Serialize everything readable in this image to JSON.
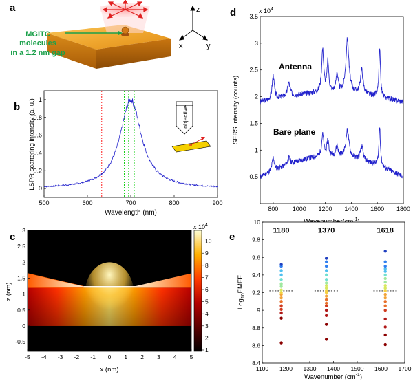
{
  "panel_labels": {
    "a": "a",
    "b": "b",
    "c": "c",
    "d": "d",
    "e": "e"
  },
  "panel_a": {
    "annotation_lines": [
      "MGITC",
      "molecules",
      "in a 1.2 nm gap"
    ],
    "axes": {
      "z": "z",
      "x": "x",
      "y": "y"
    },
    "colors": {
      "annotation": "#1aa04a",
      "gold_top": "#f1b23a",
      "gold_side": "#c8780e"
    }
  },
  "chart_data": [
    {
      "id": "b",
      "type": "line",
      "title": "",
      "xlabel": "Wavelength (nm)",
      "ylabel": "LSPR scattering intensity (a. u.)",
      "xlim": [
        500,
        900
      ],
      "ylim": [
        -0.1,
        1.1
      ],
      "xticks": [
        "500",
        "600",
        "700",
        "800",
        "900"
      ],
      "yticks": [
        "0",
        "0.2",
        "0.4",
        "0.6",
        "0.8",
        "1"
      ],
      "peak_nm": 700,
      "fwhm_nm": 60,
      "vlines": [
        {
          "x": 633,
          "color": "#ff0000"
        },
        {
          "x": 685,
          "color": "#00cc00"
        },
        {
          "x": 695,
          "color": "#00cc00"
        },
        {
          "x": 708,
          "color": "#00cc00"
        }
      ],
      "inset_label": "objective"
    },
    {
      "id": "c",
      "type": "heatmap",
      "xlabel": "x (nm)",
      "ylabel": "z (nm)",
      "xlim": [
        -5,
        5
      ],
      "ylim": [
        -0.8,
        3
      ],
      "xticks": [
        "-5",
        "-4",
        "-3",
        "-2",
        "-1",
        "0",
        "1",
        "2",
        "3",
        "4",
        "5"
      ],
      "yticks": [
        "-0.5",
        "0",
        "0.5",
        "1",
        "1.5",
        "2",
        "2.5",
        "3"
      ],
      "colorbar": {
        "min": 1,
        "max": 11,
        "ticks": [
          "1",
          "2",
          "3",
          "4",
          "5",
          "6",
          "7",
          "8",
          "9",
          "10"
        ],
        "scale_label": "x 10",
        "scale_exp": "4"
      }
    },
    {
      "id": "d",
      "type": "line",
      "xlabel": "Wavenumber(cm",
      "xlabel_sup": "-1",
      "xlabel_end": ")",
      "ylabel": "SERS intensity (counts)",
      "scale_label": "x 10",
      "scale_exp": "4",
      "xlim": [
        700,
        1800
      ],
      "ylim": [
        0,
        3.5
      ],
      "xticks": [
        "800",
        "1000",
        "1200",
        "1400",
        "1600",
        "1800"
      ],
      "yticks": [
        "0.5",
        "1",
        "1.5",
        "2",
        "2.5",
        "3",
        "3.5"
      ],
      "series": [
        {
          "name": "Antenna",
          "baseline": 1.9,
          "slope": 0.3
        },
        {
          "name": "Bare plane",
          "baseline": 0.5,
          "slope": 0.65
        }
      ],
      "peaks_cm": [
        800,
        920,
        1180,
        1220,
        1290,
        1370,
        1480,
        1618
      ]
    },
    {
      "id": "e",
      "type": "scatter",
      "xlabel": "Wavenumber (cm",
      "xlabel_sup": "-1",
      "xlabel_end": ")",
      "ylabel_base": "Log",
      "ylabel_sub": "10",
      "ylabel_end": "EMEF",
      "xlim": [
        1100,
        1700
      ],
      "ylim": [
        8.4,
        10
      ],
      "xticks": [
        "1100",
        "1200",
        "1300",
        "1400",
        "1500",
        "1600",
        "1700"
      ],
      "yticks": [
        "8.4",
        "8.6",
        "8.8",
        "9",
        "9.2",
        "9.4",
        "9.6",
        "9.8",
        "10"
      ],
      "group_labels": [
        "1180",
        "1370",
        "1618"
      ],
      "mean_level": 9.22,
      "groups": [
        {
          "x": 1180,
          "y": [
            8.63,
            8.91,
            8.97,
            9.01,
            9.05,
            9.1,
            9.14,
            9.18,
            9.2,
            9.23,
            9.27,
            9.3,
            9.35,
            9.4,
            9.45,
            9.5,
            9.52
          ]
        },
        {
          "x": 1370,
          "y": [
            8.67,
            8.84,
            8.94,
            9.0,
            9.05,
            9.08,
            9.12,
            9.16,
            9.2,
            9.22,
            9.25,
            9.28,
            9.31,
            9.35,
            9.4,
            9.45,
            9.5,
            9.55,
            9.59
          ]
        },
        {
          "x": 1618,
          "y": [
            8.61,
            8.72,
            8.81,
            8.9,
            9.0,
            9.05,
            9.1,
            9.14,
            9.18,
            9.22,
            9.25,
            9.28,
            9.32,
            9.36,
            9.4,
            9.44,
            9.47,
            9.5,
            9.55,
            9.67
          ]
        }
      ]
    }
  ]
}
